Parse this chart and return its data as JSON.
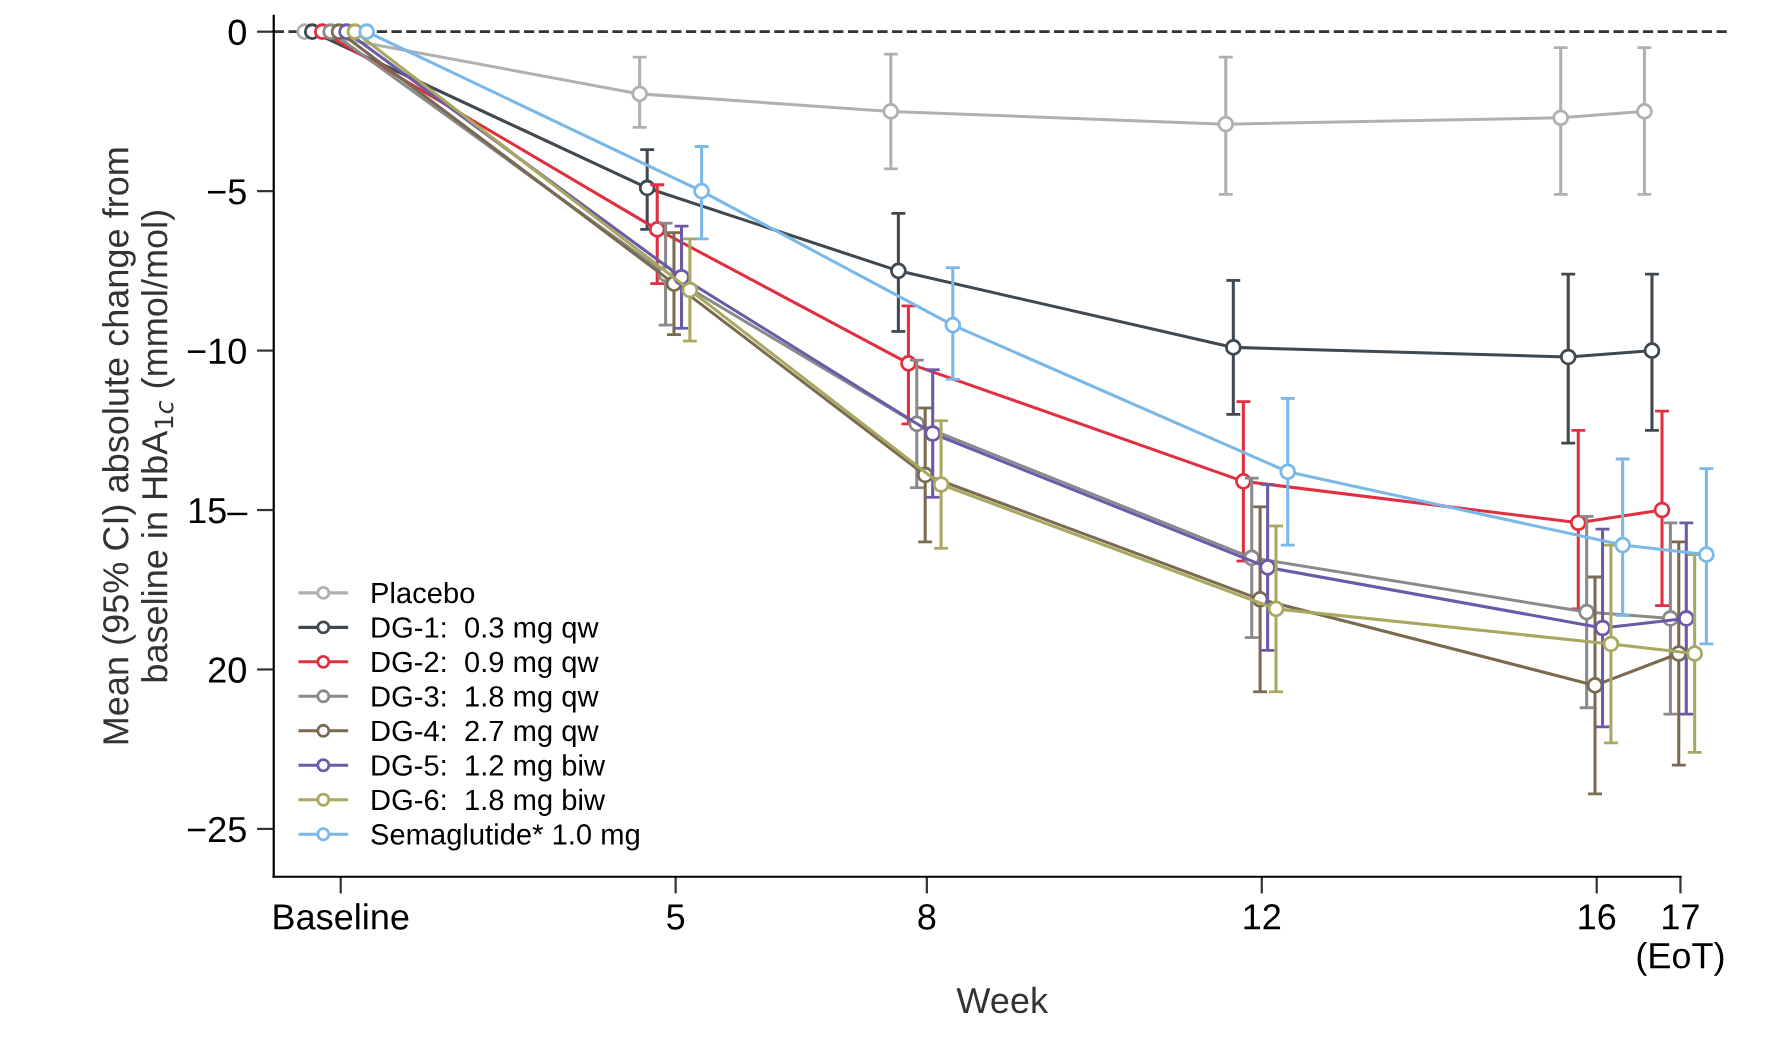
{
  "chart_data": {
    "type": "line",
    "xlabel": "Week",
    "ylabel": "Mean (95% CI) absolute change from\nbaseline in HbA$_{1c}$ (mmol/mol)",
    "xlim": [
      0.2,
      17.6
    ],
    "ylim": [
      -26.5,
      0.5
    ],
    "xticks": [
      {
        "value": 1,
        "label": "Baseline"
      },
      5,
      8,
      12,
      16,
      {
        "value": 17,
        "label": "17\n(EoT)"
      }
    ],
    "yticks": [
      0,
      {
        "value": -5,
        "label": "−5"
      },
      {
        "value": -10,
        "label": "−10"
      },
      {
        "value": -15,
        "label": "15–"
      },
      {
        "value": -20,
        "label": "20"
      },
      {
        "value": -25,
        "label": "−25"
      }
    ],
    "grid": false,
    "legend": "bottom left",
    "marker": "circle",
    "line_style": "solid",
    "ref_lines": [
      {
        "axis": "y",
        "value": 0,
        "line_style": "dashed",
        "color": "#333333"
      }
    ],
    "series": [
      {
        "name": "Placebo",
        "color": "#b0b0b0",
        "x": [
          0.57,
          4.57,
          7.57,
          11.57,
          15.57,
          16.57
        ],
        "values": [
          0,
          -1.95,
          -2.5,
          -2.9,
          -2.7,
          -2.5
        ],
        "errors": [
          null,
          [
            -3.0,
            -0.8
          ],
          [
            -4.3,
            -0.7
          ],
          [
            -5.1,
            -0.8
          ],
          [
            -5.1,
            -0.5
          ],
          [
            -5.1,
            -0.5
          ]
        ]
      },
      {
        "name": "DG-1:  0.3 mg qw",
        "color": "#404850",
        "x": [
          0.66,
          4.66,
          7.66,
          11.66,
          15.66,
          16.66
        ],
        "values": [
          0,
          -4.9,
          -7.5,
          -9.9,
          -10.2,
          -10.0
        ],
        "errors": [
          null,
          [
            -6.2,
            -3.7
          ],
          [
            -9.4,
            -5.7
          ],
          [
            -12.0,
            -7.8
          ],
          [
            -12.9,
            -7.6
          ],
          [
            -12.5,
            -7.6
          ]
        ]
      },
      {
        "name": "DG-2:  0.9 mg qw",
        "color": "#e03040",
        "x": [
          0.78,
          4.78,
          7.78,
          11.78,
          15.78,
          16.78
        ],
        "values": [
          0,
          -6.2,
          -10.4,
          -14.1,
          -15.4,
          -15.0
        ],
        "errors": [
          null,
          [
            -7.9,
            -4.8
          ],
          [
            -12.3,
            -8.6
          ],
          [
            -16.6,
            -11.6
          ],
          [
            -18.1,
            -12.5
          ],
          [
            -18.0,
            -11.9
          ]
        ]
      },
      {
        "name": "DG-3:  1.8 mg qw",
        "color": "#8a8a8a",
        "x": [
          0.88,
          4.88,
          7.88,
          11.88,
          15.88,
          16.88
        ],
        "values": [
          0,
          -7.6,
          -12.3,
          -16.5,
          -18.2,
          -18.4
        ],
        "errors": [
          null,
          [
            -9.2,
            -6.0
          ],
          [
            -14.3,
            -10.3
          ],
          [
            -19.0,
            -14.0
          ],
          [
            -21.2,
            -15.2
          ],
          [
            -21.4,
            -15.4
          ]
        ]
      },
      {
        "name": "DG-4:  2.7 mg qw",
        "color": "#7a6a50",
        "x": [
          0.98,
          4.98,
          7.98,
          11.98,
          15.98,
          16.98
        ],
        "values": [
          0,
          -7.9,
          -13.9,
          -17.8,
          -20.5,
          -19.5
        ],
        "errors": [
          null,
          [
            -9.5,
            -6.3
          ],
          [
            -16.0,
            -11.8
          ],
          [
            -20.7,
            -14.9
          ],
          [
            -23.9,
            -17.1
          ],
          [
            -23.0,
            -16.0
          ]
        ]
      },
      {
        "name": "DG-5:  1.2 mg biw",
        "color": "#6a5aa8",
        "x": [
          1.07,
          5.07,
          8.07,
          12.07,
          16.07,
          17.07
        ],
        "values": [
          0,
          -7.7,
          -12.6,
          -16.8,
          -18.7,
          -18.4
        ],
        "errors": [
          null,
          [
            -9.3,
            -6.1
          ],
          [
            -14.6,
            -10.6
          ],
          [
            -19.4,
            -14.2
          ],
          [
            -21.8,
            -15.6
          ],
          [
            -21.4,
            -15.4
          ]
        ]
      },
      {
        "name": "DG-6:  1.8 mg biw",
        "color": "#a8a860",
        "x": [
          1.17,
          5.17,
          8.17,
          12.17,
          16.17,
          17.17
        ],
        "values": [
          0,
          -8.1,
          -14.2,
          -18.1,
          -19.2,
          -19.5
        ],
        "errors": [
          null,
          [
            -9.7,
            -6.5
          ],
          [
            -16.2,
            -12.2
          ],
          [
            -20.7,
            -15.5
          ],
          [
            -22.3,
            -16.1
          ],
          [
            -22.6,
            -16.4
          ]
        ]
      },
      {
        "name": "Semaglutide* 1.0 mg",
        "color": "#7ab8e8",
        "x": [
          1.31,
          5.31,
          8.31,
          12.31,
          16.31,
          17.31
        ],
        "values": [
          0,
          -5.0,
          -9.2,
          -13.8,
          -16.1,
          -16.4
        ],
        "errors": [
          null,
          [
            -6.5,
            -3.6
          ],
          [
            -10.9,
            -7.4
          ],
          [
            -16.1,
            -11.5
          ],
          [
            -18.3,
            -13.4
          ],
          [
            -19.2,
            -13.7
          ]
        ]
      }
    ]
  }
}
